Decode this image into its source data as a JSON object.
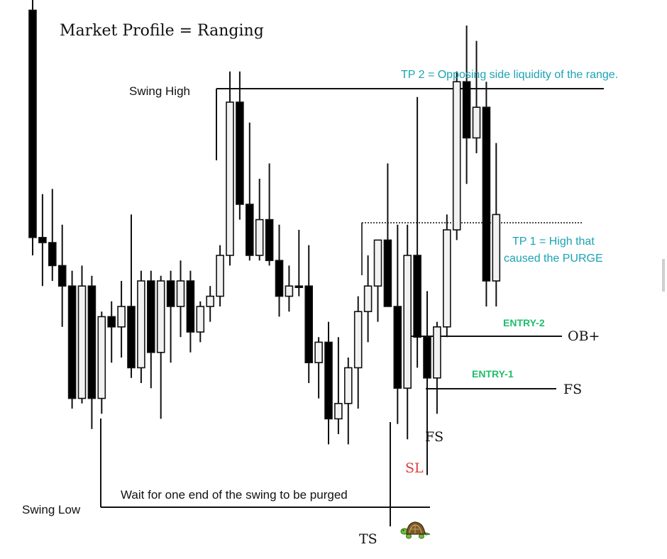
{
  "title": "Market Profile = Ranging",
  "labels": {
    "swing_high": "Swing High",
    "swing_low": "Swing Low",
    "wait": "Wait for one end of the swing to be purged",
    "tp2": "TP 2 =  Opposing side liquidity of the range.",
    "tp1_line1": "TP 1 = High that",
    "tp1_line2": "caused the PURGE",
    "entry2": "ENTRY-2",
    "entry1": "ENTRY-1",
    "ob": "OB+",
    "fs_right": "FS",
    "fs_bottom": "FS",
    "sl": "SL",
    "ts": "TS"
  },
  "colors": {
    "candle_outline": "#111111",
    "bullish_fill": "#f2f2f2",
    "bearish_fill": "#000000",
    "tp_text": "#1aa3b3",
    "entry_text": "#1ebe6a",
    "sl_text": "#e03b3b"
  },
  "icons": {
    "turtle": "turtle-icon"
  },
  "chart_data": {
    "type": "candlestick",
    "title": "Market Profile = Ranging",
    "xlabel": "",
    "ylabel": "",
    "ylim": [
      0,
      100
    ],
    "candles": [
      {
        "open": 98.0,
        "high": 100.0,
        "low": 50.0,
        "close": 53.5,
        "dir": "bear"
      },
      {
        "open": 53.5,
        "high": 62.0,
        "low": 44.0,
        "close": 52.5,
        "dir": "bear"
      },
      {
        "open": 52.5,
        "high": 63.0,
        "low": 45.0,
        "close": 48.0,
        "dir": "bear"
      },
      {
        "open": 48.0,
        "high": 56.0,
        "low": 36.0,
        "close": 44.0,
        "dir": "bear"
      },
      {
        "open": 44.0,
        "high": 47.0,
        "low": 20.0,
        "close": 22.0,
        "dir": "bear"
      },
      {
        "open": 22.0,
        "high": 48.0,
        "low": 21.0,
        "close": 44.0,
        "dir": "bull"
      },
      {
        "open": 44.0,
        "high": 46.0,
        "low": 16.0,
        "close": 22.0,
        "dir": "bear"
      },
      {
        "open": 22.0,
        "high": 39.0,
        "low": 19.0,
        "close": 38.0,
        "dir": "bull"
      },
      {
        "open": 38.0,
        "high": 41.0,
        "low": 29.0,
        "close": 36.0,
        "dir": "bear"
      },
      {
        "open": 36.0,
        "high": 45.0,
        "low": 30.0,
        "close": 40.0,
        "dir": "bull"
      },
      {
        "open": 40.0,
        "high": 58.0,
        "low": 26.0,
        "close": 28.0,
        "dir": "bear"
      },
      {
        "open": 28.0,
        "high": 47.0,
        "low": 25.0,
        "close": 45.0,
        "dir": "bull"
      },
      {
        "open": 45.0,
        "high": 47.0,
        "low": 24.0,
        "close": 31.0,
        "dir": "bear"
      },
      {
        "open": 31.0,
        "high": 46.0,
        "low": 18.0,
        "close": 45.0,
        "dir": "bull"
      },
      {
        "open": 45.0,
        "high": 47.0,
        "low": 29.0,
        "close": 40.0,
        "dir": "bear"
      },
      {
        "open": 40.0,
        "high": 49.0,
        "low": 34.0,
        "close": 45.0,
        "dir": "bull"
      },
      {
        "open": 45.0,
        "high": 47.0,
        "low": 31.0,
        "close": 35.0,
        "dir": "bear"
      },
      {
        "open": 35.0,
        "high": 41.0,
        "low": 33.0,
        "close": 40.0,
        "dir": "bull"
      },
      {
        "open": 40.0,
        "high": 44.0,
        "low": 37.0,
        "close": 42.0,
        "dir": "bull"
      },
      {
        "open": 42.0,
        "high": 52.0,
        "low": 40.0,
        "close": 50.0,
        "dir": "bull"
      },
      {
        "open": 50.0,
        "high": 86.0,
        "low": 48.0,
        "close": 80.0,
        "dir": "bull"
      },
      {
        "open": 80.0,
        "high": 86.0,
        "low": 57.0,
        "close": 60.0,
        "dir": "bear"
      },
      {
        "open": 60.0,
        "high": 76.0,
        "low": 49.0,
        "close": 50.0,
        "dir": "bear"
      },
      {
        "open": 50.0,
        "high": 65.0,
        "low": 49.0,
        "close": 57.0,
        "dir": "bull"
      },
      {
        "open": 57.0,
        "high": 68.0,
        "low": 48.0,
        "close": 49.0,
        "dir": "bear"
      },
      {
        "open": 49.0,
        "high": 56.0,
        "low": 38.0,
        "close": 42.0,
        "dir": "bear"
      },
      {
        "open": 42.0,
        "high": 48.0,
        "low": 39.0,
        "close": 44.0,
        "dir": "bull"
      },
      {
        "open": 44.0,
        "high": 55.0,
        "low": 42.0,
        "close": 44.0,
        "dir": "bear"
      },
      {
        "open": 44.0,
        "high": 52.0,
        "low": 25.0,
        "close": 29.0,
        "dir": "bear"
      },
      {
        "open": 29.0,
        "high": 34.0,
        "low": 22.0,
        "close": 33.0,
        "dir": "bull"
      },
      {
        "open": 33.0,
        "high": 37.0,
        "low": 13.0,
        "close": 18.0,
        "dir": "bear"
      },
      {
        "open": 18.0,
        "high": 34.0,
        "low": 15.0,
        "close": 21.0,
        "dir": "bull"
      },
      {
        "open": 21.0,
        "high": 30.0,
        "low": 13.0,
        "close": 28.0,
        "dir": "bull"
      },
      {
        "open": 28.0,
        "high": 42.0,
        "low": 20.0,
        "close": 39.0,
        "dir": "bull"
      },
      {
        "open": 39.0,
        "high": 50.0,
        "low": 33.0,
        "close": 44.0,
        "dir": "bull"
      },
      {
        "open": 44.0,
        "high": 53.0,
        "low": 37.0,
        "close": 53.0,
        "dir": "bull"
      },
      {
        "open": 53.0,
        "high": 68.0,
        "low": 41.0,
        "close": 40.0,
        "dir": "bear"
      },
      {
        "open": 40.0,
        "high": 56.0,
        "low": 17.0,
        "close": 24.0,
        "dir": "bear"
      },
      {
        "open": 24.0,
        "high": 56.0,
        "low": 14.0,
        "close": 50.0,
        "dir": "bull"
      },
      {
        "open": 50.0,
        "high": 81.0,
        "low": 28.0,
        "close": 34.0,
        "dir": "bear"
      },
      {
        "open": 34.0,
        "high": 43.0,
        "low": 7.0,
        "close": 26.0,
        "dir": "bear"
      },
      {
        "open": 26.0,
        "high": 37.0,
        "low": 19.0,
        "close": 36.0,
        "dir": "bull"
      },
      {
        "open": 36.0,
        "high": 58.0,
        "low": 34.0,
        "close": 55.0,
        "dir": "bull"
      },
      {
        "open": 55.0,
        "high": 86.0,
        "low": 53.0,
        "close": 84.0,
        "dir": "bull"
      },
      {
        "open": 84.0,
        "high": 95.0,
        "low": 64.0,
        "close": 73.0,
        "dir": "bear"
      },
      {
        "open": 73.0,
        "high": 92.0,
        "low": 70.0,
        "close": 79.0,
        "dir": "bull"
      },
      {
        "open": 79.0,
        "high": 84.0,
        "low": 40.0,
        "close": 45.0,
        "dir": "bear"
      },
      {
        "open": 45.0,
        "high": 72.0,
        "low": 40.0,
        "close": 58.0,
        "dir": "bull"
      }
    ],
    "levels": [
      {
        "label": "Swing High",
        "y": 91.0
      },
      {
        "label": "Swing Low",
        "y": 5.0
      },
      {
        "label": "TP 1",
        "y": 68.0
      },
      {
        "label": "OB+",
        "y": 42.0
      },
      {
        "label": "FS",
        "y": 34.0
      }
    ]
  }
}
